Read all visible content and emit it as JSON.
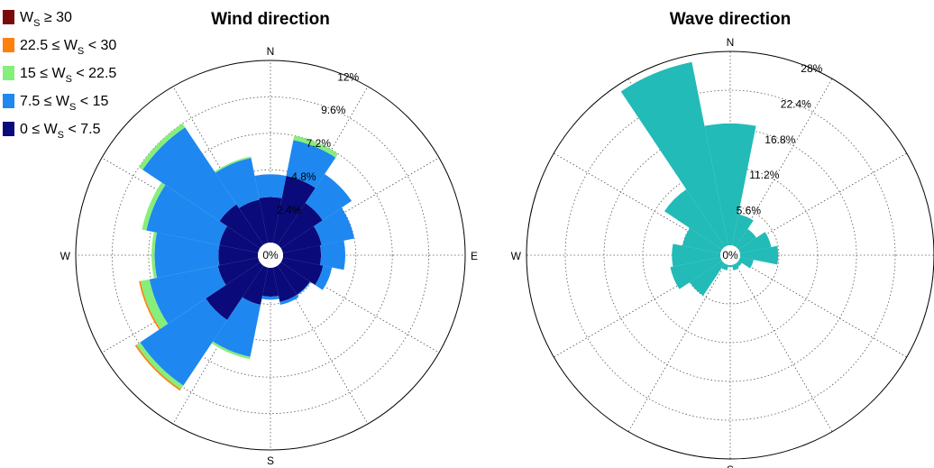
{
  "chart_data": [
    {
      "type": "rose",
      "title": "Wind direction",
      "sectors": 16,
      "directions": [
        "N",
        "NNE",
        "NE",
        "ENE",
        "E",
        "ESE",
        "SE",
        "SSE",
        "S",
        "SSW",
        "SW",
        "WSW",
        "W",
        "WNW",
        "NW",
        "NNW"
      ],
      "compass_labels": [
        "N",
        "E",
        "S",
        "W"
      ],
      "center_label": "0%",
      "r_ticks": [
        "2.4%",
        "4.8%",
        "7.2%",
        "9.6%",
        "12%"
      ],
      "r_max_percent": 12,
      "legend": {
        "items": [
          {
            "base": "W",
            "sub": "S",
            "rel": "≥ 30",
            "pre": "",
            "color": "#7a0b0b"
          },
          {
            "base": "W",
            "sub": "S",
            "rel": "< 30",
            "pre": "22.5 ≤ ",
            "color": "#ff7f0e"
          },
          {
            "base": "W",
            "sub": "S",
            "rel": "< 22.5",
            "pre": "15 ≤ ",
            "color": "#86ee7a"
          },
          {
            "base": "W",
            "sub": "S",
            "rel": "< 15",
            "pre": "7.5 ≤ ",
            "color": "#1e88f0"
          },
          {
            "base": "W",
            "sub": "S",
            "rel": "< 7.5",
            "pre": "0 ≤ ",
            "color": "#0a0a7a"
          }
        ]
      },
      "series": [
        {
          "name": "0 ≤ WS < 7.5",
          "color": "#0a0a7a",
          "values": [
            3.0,
            4.5,
            3.3,
            2.6,
            2.5,
            2.7,
            2.3,
            2.3,
            1.9,
            2.5,
            4.3,
            2.7,
            2.6,
            2.6,
            3.2,
            2.9
          ]
        },
        {
          "name": "7.5 ≤ WS < 15",
          "color": "#1e88f0",
          "values": [
            1.5,
            2.4,
            2.3,
            2.2,
            1.6,
            0.6,
            0.05,
            0.2,
            0.2,
            3.5,
            5.2,
            4.6,
            4.2,
            4.9,
            6.1,
            2.8
          ]
        },
        {
          "name": "15 ≤ WS < 22.5",
          "color": "#86ee7a",
          "values": [
            0.0,
            0.3,
            0.0,
            0.0,
            0.0,
            0.0,
            0.0,
            0.0,
            0.0,
            0.15,
            0.3,
            0.6,
            0.2,
            0.3,
            0.3,
            0.1
          ]
        },
        {
          "name": "22.5 ≤ WS < 30",
          "color": "#ff7f0e",
          "values": [
            0.0,
            0.0,
            0.0,
            0.0,
            0.0,
            0.0,
            0.0,
            0.0,
            0.0,
            0.0,
            0.1,
            0.1,
            0.0,
            0.0,
            0.0,
            0.0
          ]
        },
        {
          "name": "WS ≥ 30",
          "color": "#7a0b0b",
          "values": [
            0,
            0,
            0,
            0,
            0,
            0,
            0,
            0,
            0,
            0,
            0,
            0,
            0,
            0,
            0,
            0
          ]
        }
      ]
    },
    {
      "type": "rose",
      "title": "Wave direction",
      "sectors": 16,
      "directions": [
        "N",
        "NNE",
        "NE",
        "ENE",
        "E",
        "ESE",
        "SE",
        "SSE",
        "S",
        "SSW",
        "SW",
        "WSW",
        "W",
        "WNW",
        "NW",
        "NNW"
      ],
      "compass_labels": [
        "N",
        "E",
        "S",
        "W"
      ],
      "center_label": "0%",
      "r_ticks": [
        "5.6%",
        "11.2%",
        "16.8%",
        "22.4%",
        "28%"
      ],
      "r_max_percent": 28,
      "series": [
        {
          "name": "Wave",
          "color": "#22bbb7",
          "values": [
            17.6,
            4.6,
            3.1,
            4.6,
            5.5,
            2.0,
            0.6,
            0.8,
            0.3,
            0.8,
            5.6,
            7.4,
            7.0,
            5.6,
            10.0,
            27.0
          ]
        }
      ]
    }
  ]
}
